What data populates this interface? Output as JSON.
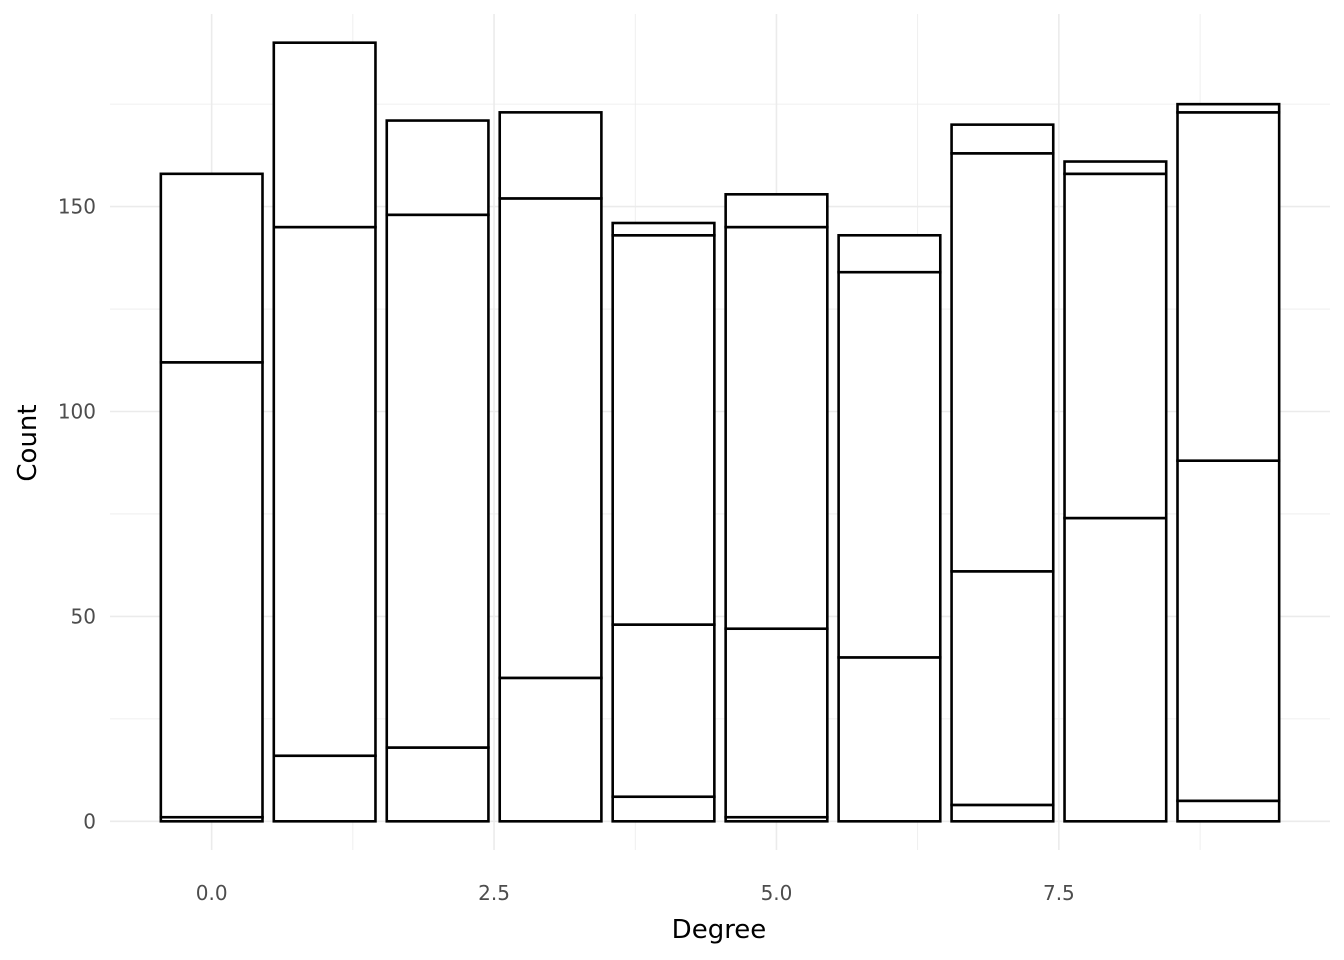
{
  "chart_data": {
    "type": "bar",
    "stacked": true,
    "title": "",
    "xlabel": "Degree",
    "ylabel": "Count",
    "xlim": [
      -0.9,
      9.9
    ],
    "ylim": [
      -7,
      197
    ],
    "x_ticks": [
      0,
      2.5,
      5,
      7.5
    ],
    "x_tick_labels": [
      "0.0",
      "2.5",
      "5.0",
      "7.5"
    ],
    "y_ticks": [
      0,
      50,
      100,
      150
    ],
    "y_tick_labels": [
      "0",
      "50",
      "100",
      "150"
    ],
    "grid": true,
    "legend": "none",
    "bar_width": 0.9,
    "bar_fill": "#ffffff",
    "bar_outline": "#000000",
    "grid_color": "#ebebeb",
    "x": [
      0,
      1,
      2,
      3,
      4,
      5,
      6,
      7,
      8,
      9
    ],
    "stack_tops": [
      [
        1,
        112,
        158
      ],
      [
        16,
        145,
        190
      ],
      [
        18,
        148,
        171
      ],
      [
        35,
        152,
        173
      ],
      [
        6,
        48,
        143,
        146
      ],
      [
        1,
        47,
        145,
        153
      ],
      [
        40,
        134,
        143
      ],
      [
        4,
        61,
        163,
        170
      ],
      [
        74,
        158,
        161
      ],
      [
        5,
        88,
        173,
        175
      ]
    ]
  }
}
